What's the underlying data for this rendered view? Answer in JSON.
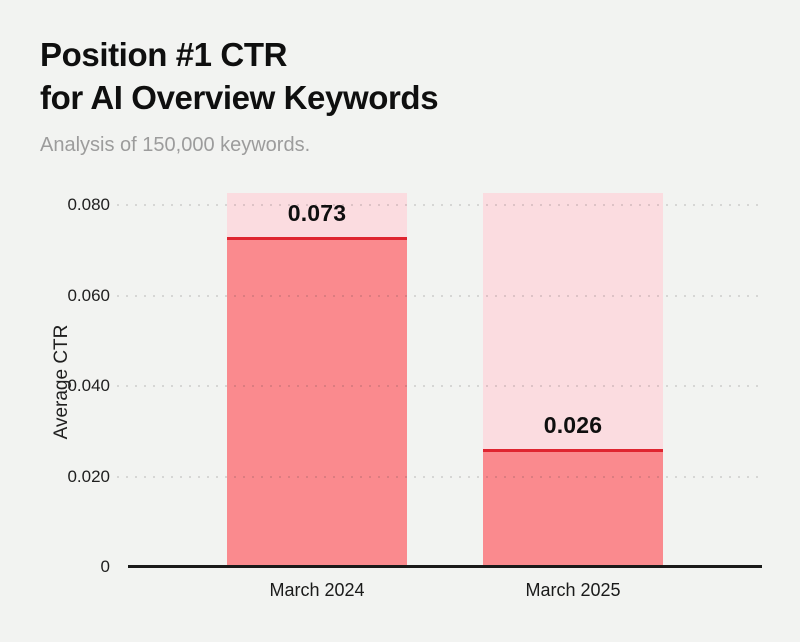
{
  "page": {
    "background": "#f2f3f1"
  },
  "header": {
    "title_line1": "Position #1 CTR",
    "title_line2": "for AI Overview Keywords",
    "subtitle": "Analysis of 150,000 keywords."
  },
  "chart_data": {
    "type": "bar",
    "title": "Position #1 CTR for AI Overview Keywords",
    "subtitle": "Analysis of 150,000 keywords.",
    "categories": [
      "March 2024",
      "March 2025"
    ],
    "values": [
      0.073,
      0.026
    ],
    "value_labels": [
      "0.073",
      "0.026"
    ],
    "xlabel": "",
    "ylabel": "Average CTR",
    "ylim": [
      0,
      0.083
    ],
    "yticks": [
      0,
      0.02,
      0.04,
      0.06,
      0.08
    ],
    "ytick_labels": [
      "0",
      "0.020",
      "0.040",
      "0.060",
      "0.080"
    ],
    "grid": "dotted horizontal lines drawn over bars",
    "legend": "none",
    "bar_background_track_max": 0.083,
    "colors": {
      "bg": "#f2f3f1",
      "bar_fill": "#fa8a8e",
      "bar_track": "#fbdce0",
      "bar_top_line": "#df2530",
      "axis_line": "#1a1a1a",
      "grid_dot": "rgba(40,40,40,0.14)",
      "title": "#0f0f0f",
      "subtitle": "#9c9c9c",
      "tick_text": "#1f1f1f",
      "xlabel_text": "#1a1a1a"
    }
  }
}
